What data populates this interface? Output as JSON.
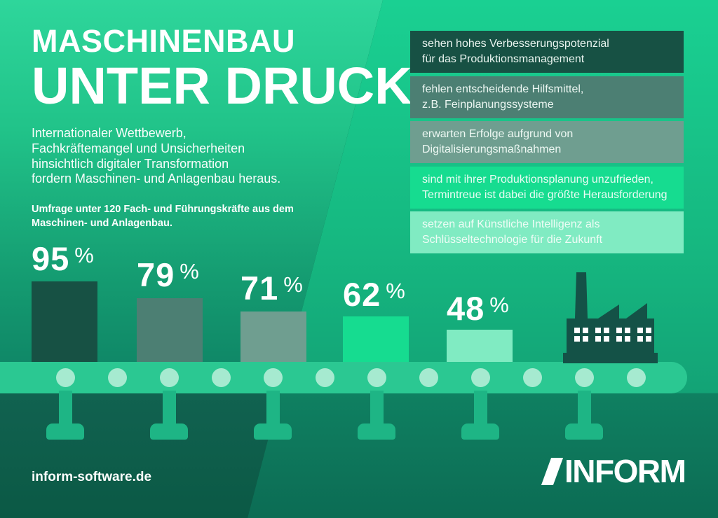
{
  "title": {
    "line1": "MASCHINENBAU",
    "line2": "UNTER DRUCK"
  },
  "intro_text": "Internationaler Wettbewerb,\nFachkräftemangel und Unsicherheiten\nhinsichtlich digitaler Transformation\nfordern Maschinen- und Anlagenbau heraus.",
  "survey_note": "Umfrage unter 120 Fach- und Führungskräfte aus dem\nMaschinen- und Anlagenbau.",
  "statements": [
    {
      "value_pct": 95,
      "color": "#175144",
      "text": "sehen hohes Verbesserungspotenzial\nfür das Produktionsmanagement"
    },
    {
      "value_pct": 79,
      "color": "#4c7f73",
      "text": "fehlen entscheidende Hilfsmittel,\nz.B. Feinplanungssysteme"
    },
    {
      "value_pct": 71,
      "color": "#6f9e90",
      "text": "erwarten Erfolge aufgrund von\nDigitalisierungsmaßnahmen"
    },
    {
      "value_pct": 62,
      "color": "#16dc90",
      "text": "sind mit ihrer Produktionsplanung unzufrieden,\nTermintreue ist dabei die größte Herausforderung"
    },
    {
      "value_pct": 48,
      "color": "#80ebc2",
      "text": "setzen auf Künstliche Intelligenz als\nSchlüsseltechnologie für die Zukunft"
    }
  ],
  "chart_data": {
    "type": "bar",
    "title": "Maschinenbau unter Druck",
    "subtitle": "Umfrage unter 120 Fach- und Führungskräfte aus dem Maschinen- und Anlagenbau",
    "unit": "%",
    "categories": [
      "sehen hohes Verbesserungspotenzial für das Produktionsmanagement",
      "fehlen entscheidende Hilfsmittel, z.B. Feinplanungssysteme",
      "erwarten Erfolge aufgrund von Digitalisierungsmaßnahmen",
      "sind mit ihrer Produktionsplanung unzufrieden, Termintreue ist dabei die größte Herausforderung",
      "setzen auf Künstliche Intelligenz als Schlüsseltechnologie für die Zukunft"
    ],
    "values": [
      95,
      79,
      71,
      62,
      48
    ],
    "colors": [
      "#175144",
      "#4c7f73",
      "#6f9e90",
      "#16dc90",
      "#80ebc2"
    ],
    "value_labels": [
      "95 %",
      "79 %",
      "71 %",
      "62 %",
      "48 %"
    ],
    "legend": "none",
    "grid": "off"
  },
  "footer": {
    "website": "inform-software.de"
  },
  "logo": {
    "text": "INFORM",
    "mark": "parallelogram-mark"
  },
  "palette": {
    "background_top_left": "#2ed69b",
    "background_top_right": "#1ad092",
    "background_bottom_left": "#0b5945",
    "background_bottom_right": "#0c6c54",
    "belt": "#2bc892",
    "belt_leg": "#1eb585",
    "belt_roller": "#a6ead0",
    "factory": "#145247",
    "factory_window": "#ffffff",
    "text": "#ffffff"
  }
}
